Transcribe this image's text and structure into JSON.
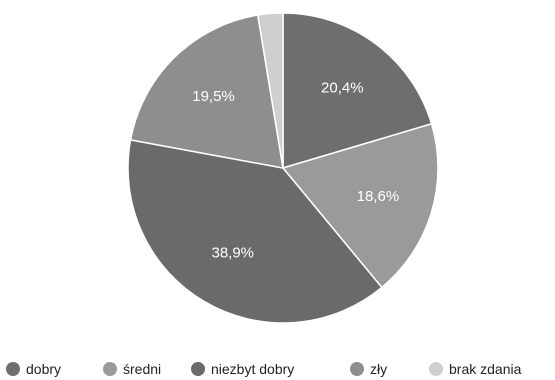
{
  "chart_data": {
    "type": "pie",
    "title": "",
    "categories": [
      "dobry",
      "średni",
      "niezbyt dobry",
      "zły",
      "brak zdania"
    ],
    "values": [
      20.4,
      18.6,
      38.9,
      19.5,
      2.6
    ],
    "data_labels": [
      "20,4%",
      "18,6%",
      "38,9%",
      "19,5%",
      ""
    ],
    "colors": [
      "#6e6e6e",
      "#9a9a9a",
      "#6a6a6a",
      "#8e8e8e",
      "#cfcfcf"
    ],
    "start_angle_deg": 0,
    "direction": "clockwise",
    "legend_position": "bottom"
  }
}
